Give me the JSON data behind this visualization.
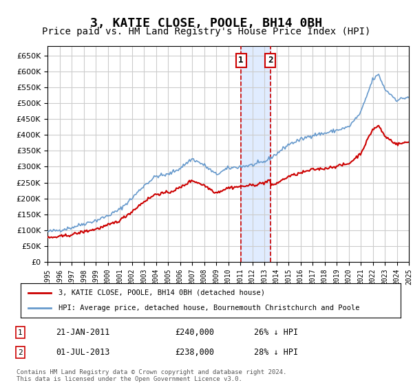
{
  "title": "3, KATIE CLOSE, POOLE, BH14 0BH",
  "subtitle": "Price paid vs. HM Land Registry's House Price Index (HPI)",
  "title_fontsize": 13,
  "subtitle_fontsize": 10,
  "ylabel_ticks": [
    0,
    50000,
    100000,
    150000,
    200000,
    250000,
    300000,
    350000,
    400000,
    450000,
    500000,
    550000,
    600000,
    650000
  ],
  "ylim": [
    0,
    680000
  ],
  "x_start_year": 1995,
  "x_end_year": 2025,
  "transaction1": {
    "date_num": 2011.06,
    "price": 240000,
    "label": "21-JAN-2011",
    "pct": "26% ↓ HPI"
  },
  "transaction2": {
    "date_num": 2013.5,
    "price": 238000,
    "label": "01-JUL-2013",
    "pct": "28% ↓ HPI"
  },
  "hpi_line_color": "#6699cc",
  "property_line_color": "#cc0000",
  "legend_label_property": "3, KATIE CLOSE, POOLE, BH14 0BH (detached house)",
  "legend_label_hpi": "HPI: Average price, detached house, Bournemouth Christchurch and Poole",
  "footer_line1": "Contains HM Land Registry data © Crown copyright and database right 2024.",
  "footer_line2": "This data is licensed under the Open Government Licence v3.0.",
  "background_color": "#ffffff",
  "plot_bg_color": "#ffffff",
  "grid_color": "#cccccc",
  "shade_color": "#cce0ff"
}
